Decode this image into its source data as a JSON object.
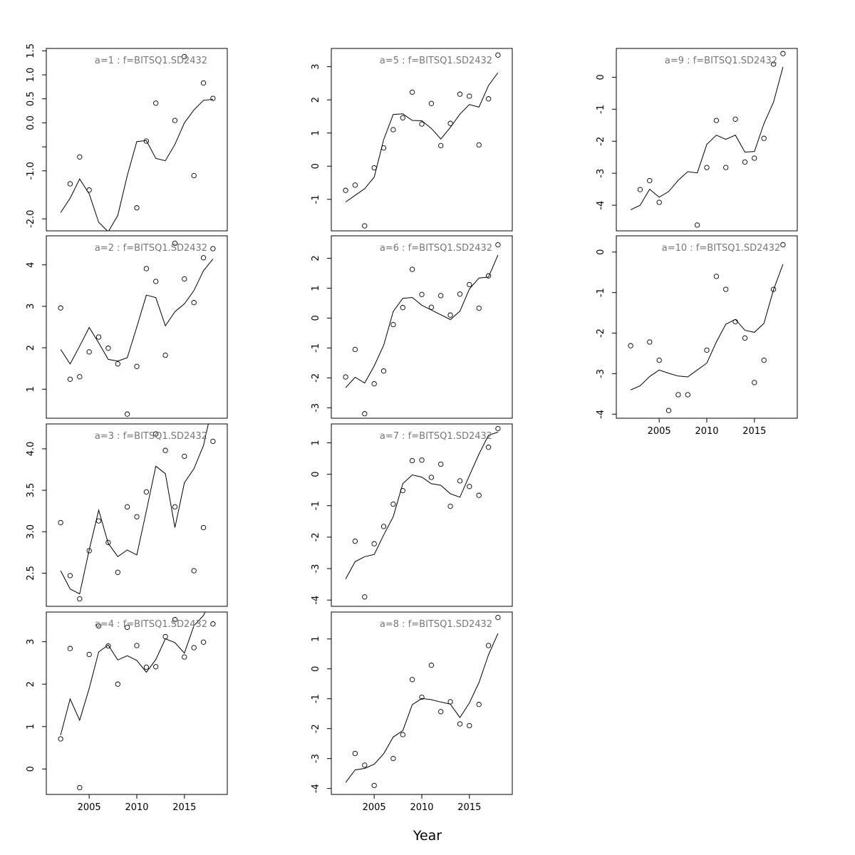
{
  "figure": {
    "xlabel": "Year"
  },
  "chart_data": [
    {
      "type": "line",
      "title": "a=1 : f=BITSQ1.SD2432",
      "x": [
        2002,
        2003,
        2004,
        2005,
        2006,
        2007,
        2008,
        2009,
        2010,
        2011,
        2012,
        2013,
        2014,
        2015,
        2016,
        2017,
        2018
      ],
      "series": [
        {
          "values": [
            -1.87,
            -1.57,
            -1.17,
            -1.48,
            -2.07,
            -2.27,
            -1.93,
            -1.1,
            -0.39,
            -0.37,
            -0.74,
            -0.79,
            -0.45,
            0.0,
            0.27,
            0.47,
            0.49
          ]
        },
        {
          "values": [
            null,
            -1.27,
            -0.71,
            -1.4,
            null,
            null,
            null,
            null,
            -1.77,
            -0.38,
            0.41,
            null,
            0.05,
            1.38,
            -1.1,
            0.83,
            0.51
          ]
        }
      ],
      "ylim": [
        -2.25,
        1.55
      ],
      "yticks": [
        -2.0,
        -1.0,
        -0.5,
        0.0,
        0.5,
        1.0,
        1.5
      ],
      "ytick_labels": [
        "-2.0",
        "-1.0",
        "",
        "0.0",
        "0.5",
        "1.0",
        "1.5"
      ],
      "xticks": [],
      "xtick_labels": []
    },
    {
      "type": "line",
      "title": "a=2 : f=BITSQ1.SD2432",
      "x": [
        2002,
        2003,
        2004,
        2005,
        2006,
        2007,
        2008,
        2009,
        2010,
        2011,
        2012,
        2013,
        2014,
        2015,
        2016,
        2017,
        2018
      ],
      "series": [
        {
          "values": [
            1.96,
            1.61,
            2.04,
            2.49,
            2.12,
            1.72,
            1.68,
            1.76,
            2.5,
            3.27,
            3.21,
            2.53,
            2.87,
            3.06,
            3.38,
            3.86,
            4.14
          ]
        },
        {
          "values": [
            2.96,
            1.24,
            1.3,
            1.9,
            2.26,
            1.99,
            1.61,
            0.4,
            1.55,
            3.91,
            3.6,
            1.82,
            4.52,
            3.66,
            3.09,
            4.17,
            4.39
          ]
        }
      ],
      "ylim": [
        0.3,
        4.7
      ],
      "yticks": [
        1,
        2,
        3,
        4
      ],
      "ytick_labels": [
        "1",
        "2",
        "3",
        "4"
      ],
      "xticks": [],
      "xtick_labels": []
    },
    {
      "type": "line",
      "title": "a=3 : f=BITSQ1.SD2432",
      "x": [
        2002,
        2003,
        2004,
        2005,
        2006,
        2007,
        2008,
        2009,
        2010,
        2011,
        2012,
        2013,
        2014,
        2015,
        2016,
        2017,
        2018
      ],
      "series": [
        {
          "values": [
            2.53,
            2.31,
            2.25,
            2.78,
            3.26,
            2.86,
            2.7,
            2.78,
            2.72,
            3.25,
            3.79,
            3.7,
            3.05,
            3.59,
            3.76,
            4.04,
            4.55
          ]
        },
        {
          "values": [
            3.11,
            2.47,
            2.19,
            2.77,
            3.13,
            2.87,
            2.51,
            3.3,
            3.18,
            3.48,
            4.18,
            3.98,
            3.3,
            3.91,
            2.53,
            3.05,
            4.09
          ]
        }
      ],
      "ylim": [
        2.1,
        4.3
      ],
      "yticks": [
        2.5,
        3.0,
        3.5,
        4.0
      ],
      "ytick_labels": [
        "2.5",
        "3.0",
        "3.5",
        "4.0"
      ],
      "xticks": [],
      "xtick_labels": []
    },
    {
      "type": "line",
      "title": "a=4 : f=BITSQ1.SD2432",
      "x": [
        2002,
        2003,
        2004,
        2005,
        2006,
        2007,
        2008,
        2009,
        2010,
        2011,
        2012,
        2013,
        2014,
        2015,
        2016,
        2017,
        2018
      ],
      "series": [
        {
          "values": [
            0.8,
            1.65,
            1.15,
            1.9,
            2.76,
            2.92,
            2.57,
            2.67,
            2.56,
            2.28,
            2.58,
            3.07,
            2.98,
            2.73,
            3.38,
            3.62,
            4.06
          ]
        },
        {
          "values": [
            0.71,
            2.84,
            -0.44,
            2.7,
            3.37,
            2.9,
            2.0,
            3.34,
            2.91,
            2.4,
            2.41,
            3.12,
            3.52,
            2.64,
            2.86,
            2.99,
            3.42
          ]
        }
      ],
      "ylim": [
        -0.6,
        3.7
      ],
      "yticks": [
        0,
        1,
        2,
        3
      ],
      "ytick_labels": [
        "0",
        "1",
        "2",
        "3"
      ],
      "xticks": [
        2005,
        2010,
        2015
      ],
      "xtick_labels": [
        "2005",
        "2010",
        "2015"
      ]
    },
    {
      "type": "line",
      "title": "a=5 : f=BITSQ1.SD2432",
      "x": [
        2002,
        2003,
        2004,
        2005,
        2006,
        2007,
        2008,
        2009,
        2010,
        2011,
        2012,
        2013,
        2014,
        2015,
        2016,
        2017,
        2018
      ],
      "series": [
        {
          "values": [
            -1.08,
            -0.88,
            -0.68,
            -0.33,
            0.8,
            1.56,
            1.58,
            1.38,
            1.37,
            1.14,
            0.82,
            1.17,
            1.57,
            1.86,
            1.78,
            2.43,
            2.82
          ]
        },
        {
          "values": [
            -0.73,
            -0.57,
            -1.8,
            -0.05,
            0.55,
            1.1,
            1.46,
            2.23,
            1.27,
            1.89,
            0.62,
            1.29,
            2.17,
            2.11,
            0.64,
            2.03,
            3.35
          ]
        }
      ],
      "ylim": [
        -1.95,
        3.55
      ],
      "yticks": [
        -1,
        0,
        1,
        2,
        3
      ],
      "ytick_labels": [
        "-1",
        "0",
        "1",
        "2",
        "3"
      ],
      "xticks": [],
      "xtick_labels": []
    },
    {
      "type": "line",
      "title": "a=6 : f=BITSQ1.SD2432",
      "x": [
        2002,
        2003,
        2004,
        2005,
        2006,
        2007,
        2008,
        2009,
        2010,
        2011,
        2012,
        2013,
        2014,
        2015,
        2016,
        2017,
        2018
      ],
      "series": [
        {
          "values": [
            -2.33,
            -1.98,
            -2.17,
            -1.6,
            -0.91,
            0.22,
            0.66,
            0.69,
            0.43,
            0.27,
            0.11,
            -0.05,
            0.23,
            0.97,
            1.34,
            1.37,
            2.11
          ]
        },
        {
          "values": [
            -1.97,
            -1.05,
            -3.2,
            -2.2,
            -1.77,
            -0.22,
            0.35,
            1.63,
            0.79,
            0.36,
            0.75,
            0.1,
            0.8,
            1.12,
            0.33,
            1.41,
            2.45
          ]
        }
      ],
      "ylim": [
        -3.35,
        2.75
      ],
      "yticks": [
        -3,
        -2,
        -1,
        0,
        1,
        2
      ],
      "ytick_labels": [
        "-3",
        "-2",
        "-1",
        "0",
        "1",
        "2"
      ],
      "xticks": [],
      "xtick_labels": []
    },
    {
      "type": "line",
      "title": "a=7 : f=BITSQ1.SD2432",
      "x": [
        2002,
        2003,
        2004,
        2005,
        2006,
        2007,
        2008,
        2009,
        2010,
        2011,
        2012,
        2013,
        2014,
        2015,
        2016,
        2017,
        2018
      ],
      "series": [
        {
          "values": [
            -3.33,
            -2.78,
            -2.62,
            -2.55,
            -1.93,
            -1.35,
            -0.3,
            -0.02,
            -0.09,
            -0.3,
            -0.35,
            -0.62,
            -0.73,
            -0.04,
            0.64,
            1.24,
            1.34
          ]
        },
        {
          "values": [
            null,
            -2.13,
            -3.9,
            -2.21,
            -1.66,
            -0.95,
            -0.52,
            0.43,
            0.45,
            -0.1,
            0.32,
            -1.02,
            -0.21,
            -0.39,
            -0.67,
            0.86,
            1.45
          ]
        }
      ],
      "ylim": [
        -4.2,
        1.6
      ],
      "yticks": [
        -4,
        -3,
        -2,
        -1,
        0,
        1
      ],
      "ytick_labels": [
        "-4",
        "-3",
        "-2",
        "-1",
        "0",
        "1"
      ],
      "xticks": [],
      "xtick_labels": []
    },
    {
      "type": "line",
      "title": "a=8 : f=BITSQ1.SD2432",
      "x": [
        2002,
        2003,
        2004,
        2005,
        2006,
        2007,
        2008,
        2009,
        2010,
        2011,
        2012,
        2013,
        2014,
        2015,
        2016,
        2017,
        2018
      ],
      "series": [
        {
          "values": [
            -3.8,
            -3.38,
            -3.33,
            -3.19,
            -2.84,
            -2.28,
            -2.07,
            -1.2,
            -0.99,
            -1.03,
            -1.11,
            -1.18,
            -1.63,
            -1.14,
            -0.46,
            0.47,
            1.18
          ]
        },
        {
          "values": [
            null,
            -2.83,
            -3.22,
            -3.9,
            null,
            -3.0,
            -2.2,
            -0.36,
            -0.95,
            0.12,
            -1.43,
            -1.1,
            -1.84,
            -1.9,
            -1.19,
            0.78,
            1.72
          ]
        }
      ],
      "ylim": [
        -4.2,
        1.9
      ],
      "yticks": [
        -4,
        -3,
        -2,
        -1,
        0,
        1
      ],
      "ytick_labels": [
        "-4",
        "-3",
        "-2",
        "-1",
        "0",
        "1"
      ],
      "xticks": [
        2005,
        2010,
        2015
      ],
      "xtick_labels": [
        "2005",
        "2010",
        "2015"
      ]
    },
    {
      "type": "line",
      "title": "a=9 : f=BITSQ1.SD2432",
      "x": [
        2002,
        2003,
        2004,
        2005,
        2006,
        2007,
        2008,
        2009,
        2010,
        2011,
        2012,
        2013,
        2014,
        2015,
        2016,
        2017,
        2018
      ],
      "series": [
        {
          "values": [
            -4.14,
            -4.0,
            -3.5,
            -3.75,
            -3.57,
            -3.22,
            -2.95,
            -2.99,
            -2.1,
            -1.81,
            -1.94,
            -1.81,
            -2.34,
            -2.32,
            -1.45,
            -0.78,
            0.32
          ]
        },
        {
          "values": [
            null,
            -3.51,
            -3.23,
            -3.91,
            null,
            null,
            null,
            -4.62,
            -2.82,
            -1.35,
            -2.82,
            -1.31,
            -2.65,
            -2.53,
            -1.91,
            0.41,
            0.74
          ]
        }
      ],
      "ylim": [
        -4.8,
        0.9
      ],
      "yticks": [
        -4,
        -3,
        -2,
        -1,
        0
      ],
      "ytick_labels": [
        "-4",
        "-3",
        "-2",
        "-1",
        "0"
      ],
      "xticks": [],
      "xtick_labels": []
    },
    {
      "type": "line",
      "title": "a=10 : f=BITSQ1.SD2432",
      "x": [
        2002,
        2003,
        2004,
        2005,
        2006,
        2007,
        2008,
        2009,
        2010,
        2011,
        2012,
        2013,
        2014,
        2015,
        2016,
        2017,
        2018
      ],
      "series": [
        {
          "values": [
            -3.4,
            -3.3,
            -3.07,
            -2.91,
            -2.99,
            -3.06,
            -3.08,
            -2.91,
            -2.74,
            -2.22,
            -1.78,
            -1.66,
            -1.93,
            -1.98,
            -1.76,
            -0.93,
            -0.3
          ]
        },
        {
          "values": [
            -2.31,
            null,
            -2.22,
            -2.67,
            -3.91,
            -3.52,
            -3.52,
            null,
            -2.42,
            -0.6,
            -0.92,
            -1.72,
            -2.12,
            -3.22,
            -2.67,
            -0.92,
            0.18
          ]
        }
      ],
      "ylim": [
        -4.1,
        0.4
      ],
      "yticks": [
        -4,
        -3,
        -2,
        -1,
        0
      ],
      "ytick_labels": [
        "-4",
        "-3",
        "-2",
        "-1",
        "0"
      ],
      "xticks": [
        2005,
        2010,
        2015
      ],
      "xtick_labels": [
        "2005",
        "2010",
        "2015"
      ]
    }
  ]
}
